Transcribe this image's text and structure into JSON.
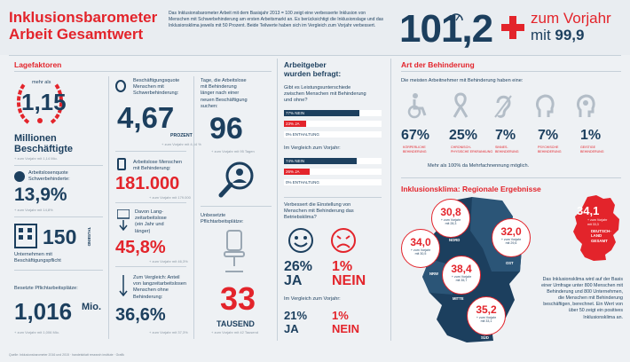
{
  "header": {
    "title_line1": "Inklusionsbarometer",
    "title_line2": "Arbeit Gesamtwert",
    "intro": "Das Inklusionsbarometer Arbeit mit dem Basisjahr 2013 = 100 zeigt eine verbesserte Inklusion von Menschen mit Schwerbehinderung am ersten Arbeitsmarkt an. Es berücksichtigt die Inklusionslage und das Inklusionsklima jeweils mit 50 Prozent. Beide Teilwerte haben sich im Vergleich zum Vorjahr verbessert.",
    "value": "101,2",
    "prev_line1": "zum Vorjahr",
    "prev_line2_prefix": "mit ",
    "prev_value": "99,9"
  },
  "lagefaktoren": {
    "title": "Lagefaktoren",
    "mehr_als": "mehr als",
    "millionen_value": "1,15",
    "millionen_label1": "Millionen",
    "millionen_label2": "Beschäftigte",
    "millionen_note": "+ zum Vorjahr mit 1,14 Mio.",
    "quote_label1": "Arbeitslosenquote",
    "quote_label2": "Schwerbehinderte:",
    "quote_value": "13,9%",
    "quote_note": "+ zum Vorjahr mit 14,8%",
    "unternehmen_value": "150",
    "unternehmen_unit": "TAUSEND",
    "unternehmen_label1": "Unternehmen mit",
    "unternehmen_label2": "Beschäftigungspflicht",
    "plaetze_label": "Besetzte Pflichtarbeitsplätze:",
    "plaetze_value": "1,016",
    "plaetze_unit": "Mio.",
    "plaetze_note": "+ zum Vorjahr mit 1,006 Mio.",
    "quote_beschaeftigung_label1": "Beschäftigungsquote",
    "quote_beschaeftigung_label2": "Menschen mit",
    "quote_beschaeftigung_label3": "Schwerbehinderung:",
    "quote_beschaeftigung_value": "4,67",
    "quote_beschaeftigung_unit": "PROZENT",
    "quote_beschaeftigung_note": "+ zum Vorjahr mit 4,64 %",
    "arbeitslose_label1": "Arbeitslose Menschen",
    "arbeitslose_label2": "mit Behinderung:",
    "arbeitslose_value": "181.000",
    "arbeitslose_note": "+ zum Vorjahr mit 179.000",
    "langzeit_label1": "Davon Lang-",
    "langzeit_label2": "zeitarbeitslose",
    "langzeit_label3": "(ein Jahr und",
    "langzeit_label4": "länger)",
    "langzeit_value": "45,8%",
    "langzeit_note": "+ zum Vorjahr mit 46,3%",
    "vergleich_label1": "Zum Vergleich: Anteil",
    "vergleich_label2": "von langzeitarbeitslosen",
    "vergleich_label3": "Menschen ohne",
    "vergleich_label4": "Behinderung:",
    "vergleich_value": "36,6%",
    "vergleich_note": "+ zum Vorjahr mit 37,3%",
    "tage_label1": "Tage, die Arbeitslose",
    "tage_label2": "mit Behinderung",
    "tage_label3": "länger nach einer",
    "tage_label4": "neuen Beschäftigung",
    "tage_label5": "suchen:",
    "tage_value": "96",
    "tage_note": "+ zum Vorjahr mit 95 Tagen",
    "unbesetzt_label1": "Unbesetzte",
    "unbesetzt_label2": "Pflichtarbeitsplätze:",
    "unbesetzt_value": "33",
    "unbesetzt_unit": "TAUSEND",
    "unbesetzt_note": "+ zum Vorjahr mit 42 Tausend"
  },
  "arbeitgeber": {
    "title1": "Arbeitgeber",
    "title2": "wurden befragt:",
    "q1_1": "Gibt es Leistungsunterschiede",
    "q1_2": "zwischen Menschen mit Behinderung",
    "q1_3": "und ohne?",
    "q1_nein": "77% NEIN",
    "q1_ja": "23% JA",
    "q1_enthaltung": "0% ENTHALTUNG",
    "q2": "Im Vergleich zum Vorjahr:",
    "q2_nein": "74% NEIN",
    "q2_ja": "26% JA",
    "q2_enthaltung": "0% ENTHALTUNG",
    "q3_1": "Verbessert die Einstellung von",
    "q3_2": "Menschen mit Behinderung das",
    "q3_3": "Betriebsklima?",
    "ja_value": "26%",
    "ja_label": "JA",
    "nein_value": "1%",
    "nein_label": "NEIN",
    "q4": "Im Vergleich zum Vorjahr:",
    "ja2_value": "21%",
    "ja2_label": "JA",
    "nein2_value": "1%",
    "nein2_label": "NEIN"
  },
  "art": {
    "title": "Art der Behinderung",
    "subtitle": "Die meisten Arbeitnehmer mit Behinderung haben eine:",
    "items": [
      {
        "value": "67%",
        "label1": "KÖRPERLICHE",
        "label2": "BEHINDERUNG"
      },
      {
        "value": "25%",
        "label1": "CHRONISCH-",
        "label2": "PHYSISCHE ERKRANKUNG"
      },
      {
        "value": "7%",
        "label1": "SINNES-",
        "label2": "BEHINDERUNG"
      },
      {
        "value": "7%",
        "label1": "PSYCHISCHE",
        "label2": "BEHINDERUNG"
      },
      {
        "value": "1%",
        "label1": "GEISTIGE",
        "label2": "BEHINDERUNG"
      }
    ],
    "note": "Mehr als 100% da Mehrfachnennung möglich."
  },
  "klima": {
    "title": "Inklusionsklima: Regionale Ergebnisse",
    "regions": [
      {
        "value": "30,8",
        "note1": "+ zum Vorjahr",
        "note2": "mit 28,3",
        "name": "NORD"
      },
      {
        "value": "34,0",
        "note1": "+ zum Vorjahr",
        "note2": "mit 30,5",
        "name": "NRW"
      },
      {
        "value": "32,0",
        "note1": "+ zum Vorjahr",
        "note2": "mit 29,6",
        "name": "OST"
      },
      {
        "value": "38,4",
        "note1": "+ zum Vorjahr",
        "note2": "mit 35,7",
        "name": "MITTE"
      },
      {
        "value": "35,2",
        "note1": "+ zum Vorjahr",
        "note2": "mit 33,1",
        "name": "SÜD"
      }
    ],
    "gesamt_value": "34,1",
    "gesamt_note1": "+ zum Vorjahr",
    "gesamt_note2": "mit 33,3",
    "gesamt_label1": "DEUTSCH-",
    "gesamt_label2": "LAND",
    "gesamt_label3": "GESAMT",
    "text": "Das Inklusionsklima wird auf der Basis einer Umfrage unter 800 Menschen mit Behinderung und 800 Unternehmen, die Menschen mit Behinderung beschäftigen, berechnet. Ein Wert von über 50 zeigt ein positives Inklusionsklima an."
  },
  "footer": "Quelle: Inklusionsbarometer 2016 und 2015 · handelsblatt research institute · Grafik",
  "colors": {
    "red": "#e3242b",
    "navy": "#1c3f5e"
  }
}
